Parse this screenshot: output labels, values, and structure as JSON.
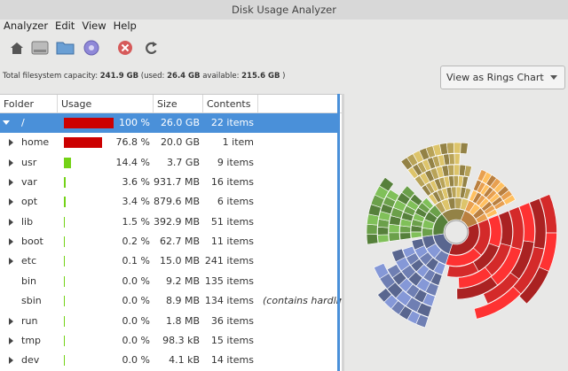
{
  "window": {
    "title": "Disk Usage Analyzer"
  },
  "menu": [
    "Analyzer",
    "Edit",
    "View",
    "Help"
  ],
  "status": {
    "capacity_label": "Total filesystem capacity:",
    "capacity": "241.9 GB",
    "used_label": "(used:",
    "used": "26.4 GB",
    "available_label": "available:",
    "available": "215.6 GB",
    "close": ")"
  },
  "view_selector": "View as Rings Chart",
  "table": {
    "headers": [
      "Folder",
      "Usage",
      "Size",
      "Contents"
    ],
    "selected": 0,
    "rows": [
      {
        "name": "/",
        "usage": 100,
        "usage_label": "100 %",
        "size": "26.0 GB",
        "contents": "22 items",
        "expandable": true,
        "expanded": true
      },
      {
        "name": "home",
        "usage": 76.8,
        "usage_label": "76.8 %",
        "size": "20.0 GB",
        "contents": "1 item",
        "expandable": true
      },
      {
        "name": "usr",
        "usage": 14.4,
        "usage_label": "14.4 %",
        "size": "3.7 GB",
        "contents": "9 items",
        "expandable": true
      },
      {
        "name": "var",
        "usage": 3.6,
        "usage_label": "3.6 %",
        "size": "931.7 MB",
        "contents": "16 items",
        "expandable": true
      },
      {
        "name": "opt",
        "usage": 3.4,
        "usage_label": "3.4 %",
        "size": "879.6 MB",
        "contents": "6 items",
        "expandable": true
      },
      {
        "name": "lib",
        "usage": 1.5,
        "usage_label": "1.5 %",
        "size": "392.9 MB",
        "contents": "51 items",
        "expandable": true
      },
      {
        "name": "boot",
        "usage": 0.2,
        "usage_label": "0.2 %",
        "size": "62.7 MB",
        "contents": "11 items",
        "expandable": true
      },
      {
        "name": "etc",
        "usage": 0.1,
        "usage_label": "0.1 %",
        "size": "15.0 MB",
        "contents": "241 items",
        "expandable": true
      },
      {
        "name": "bin",
        "usage": 0.0,
        "usage_label": "0.0 %",
        "size": "9.2 MB",
        "contents": "135 items",
        "expandable": false
      },
      {
        "name": "sbin",
        "usage": 0.0,
        "usage_label": "0.0 %",
        "size": "8.9 MB",
        "contents": "134 items",
        "expandable": false,
        "note": "(contains hardlink"
      },
      {
        "name": "run",
        "usage": 0.0,
        "usage_label": "0.0 %",
        "size": "1.8 MB",
        "contents": "36 items",
        "expandable": true
      },
      {
        "name": "tmp",
        "usage": 0.0,
        "usage_label": "0.0 %",
        "size": "98.3 kB",
        "contents": "15 items",
        "expandable": true
      },
      {
        "name": "dev",
        "usage": 0.0,
        "usage_label": "0.0 %",
        "size": "4.1 kB",
        "contents": "14 items",
        "expandable": true
      }
    ]
  }
}
